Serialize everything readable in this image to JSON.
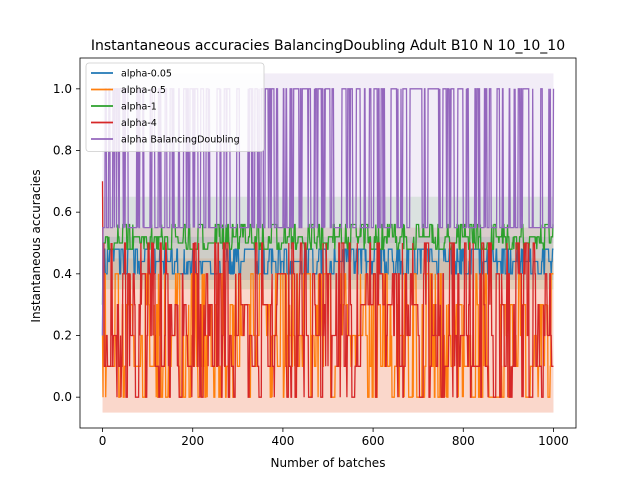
{
  "chart_data": {
    "type": "line",
    "title": "Instantaneous accuracies BalancingDoubling Adult B10 N 10_10_10",
    "xlabel": "Number of batches",
    "ylabel": "Instantaneous accuracies",
    "xlim": [
      -50,
      1050
    ],
    "ylim": [
      -0.1,
      1.1
    ],
    "x_ticks": [
      0,
      200,
      400,
      600,
      800,
      1000
    ],
    "y_ticks": [
      0.0,
      0.2,
      0.4,
      0.6,
      0.8,
      1.0
    ],
    "x_tick_labels": [
      "0",
      "200",
      "400",
      "600",
      "800",
      "1000"
    ],
    "y_tick_labels": [
      "0.0",
      "0.2",
      "0.4",
      "0.6",
      "0.8",
      "1.0"
    ],
    "grid": false,
    "legend_position": "upper-left",
    "n_points": 1000,
    "series": [
      {
        "name": "alpha-0.05",
        "color": "#1f77b4",
        "levels": [
          0.44,
          0.48,
          0.4
        ],
        "start": 0.2,
        "band": [
          0.38,
          0.52
        ]
      },
      {
        "name": "alpha-0.5",
        "color": "#ff7f0e",
        "levels": [
          0.4,
          0.3,
          0.2,
          0.1,
          0.0
        ],
        "start": 0.2,
        "band": [
          -0.05,
          0.45
        ]
      },
      {
        "name": "alpha-1",
        "color": "#2ca02c",
        "levels": [
          0.5,
          0.48,
          0.52,
          0.56
        ],
        "start": 0.3,
        "band": [
          0.35,
          0.65
        ]
      },
      {
        "name": "alpha-4",
        "color": "#d62728",
        "levels": [
          0.0,
          0.1,
          0.2,
          0.3,
          0.4,
          0.5
        ],
        "start": 0.7,
        "band": [
          -0.05,
          0.55
        ]
      },
      {
        "name": "alpha BalancingDoubling",
        "color": "#9467bd",
        "levels": [
          0.55,
          1.0
        ],
        "start": 0.2,
        "band": [
          0.5,
          1.05
        ]
      }
    ]
  }
}
